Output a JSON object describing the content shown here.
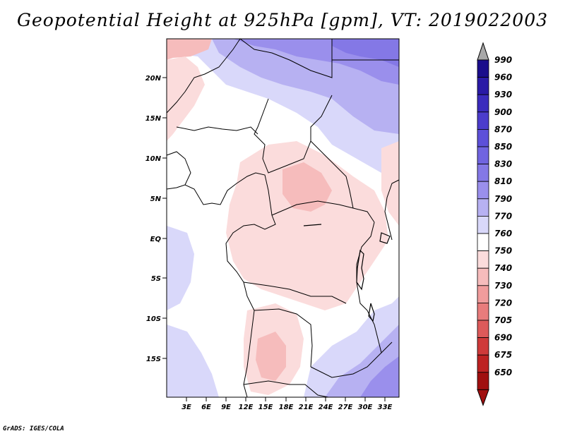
{
  "title": "Geopotential Height at 925hPa [gpm], VT: 2019022003",
  "footer": "GrADS: IGES/COLA",
  "lat_ticks": [
    "20N",
    "15N",
    "10N",
    "5N",
    "EQ",
    "5S",
    "10S",
    "15S"
  ],
  "lon_ticks": [
    "3E",
    "6E",
    "9E",
    "12E",
    "15E",
    "18E",
    "21E",
    "24E",
    "27E",
    "30E",
    "33E"
  ],
  "colorbar": {
    "levels": [
      "990",
      "960",
      "930",
      "900",
      "870",
      "850",
      "830",
      "810",
      "790",
      "770",
      "760",
      "750",
      "740",
      "730",
      "720",
      "705",
      "690",
      "675",
      "650"
    ],
    "colors": [
      "#1a0d8c",
      "#2a1aa6",
      "#3b2bbd",
      "#4b3ccc",
      "#5d50d9",
      "#7064e0",
      "#8478e6",
      "#9a8fec",
      "#b7b1f2",
      "#d9d8fa",
      "#ffffff",
      "#fbdcdc",
      "#f6bcbc",
      "#f09c9c",
      "#e87c7c",
      "#dd5a5a",
      "#cf3a3a",
      "#bd2222",
      "#a00f0f"
    ],
    "top_arrow_color": "#a8a8a8",
    "bottom_arrow_color": "#a00f0f"
  },
  "map_colors": {
    "background": "#ffffff",
    "light_pink": "#fbdcdc",
    "pink": "#f6bcbc",
    "pale_blue": "#d9d8fa",
    "light_blue": "#b7b1f2",
    "blue": "#9a8fec",
    "deep_blue": "#8478e6",
    "border": "#000000"
  }
}
